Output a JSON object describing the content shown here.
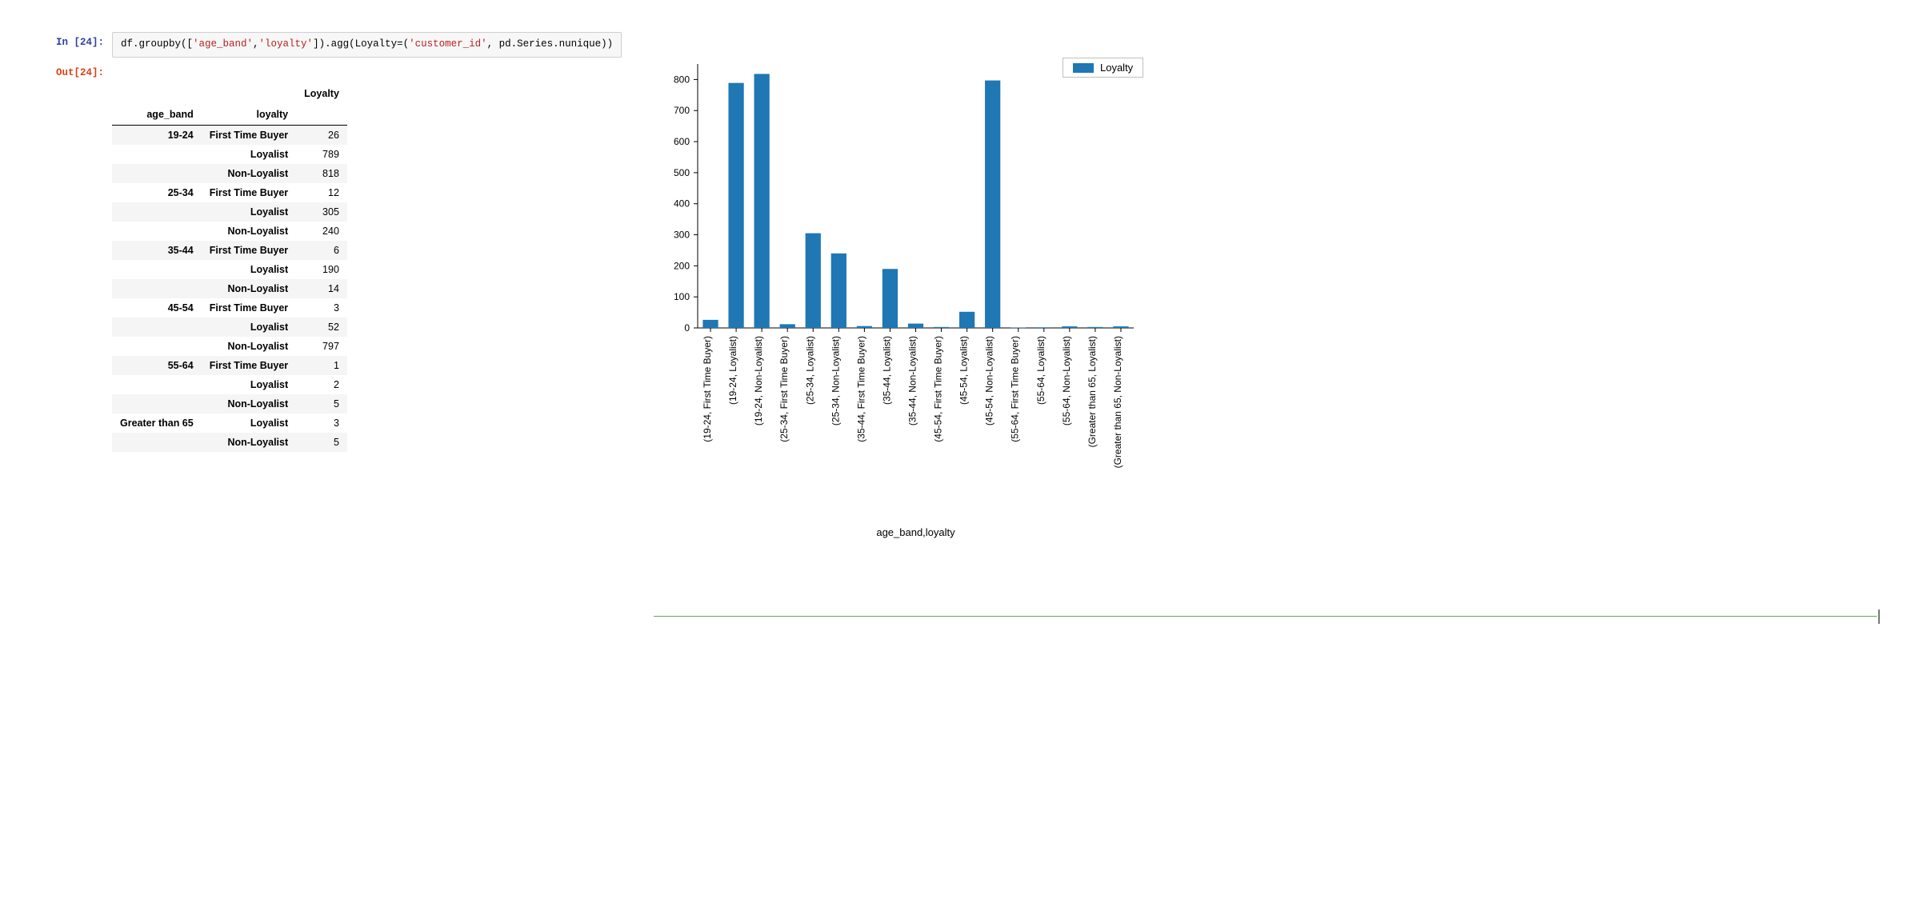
{
  "cell": {
    "in_prompt": "In [24]:",
    "out_prompt": "Out[24]:",
    "code_parts": {
      "p1": "df.groupby([",
      "s1": "'age_band'",
      "p2": ",",
      "s2": "'loyalty'",
      "p3": "]).agg(Loyalty",
      "op": "=",
      "p4": "(",
      "s3": "'customer_id'",
      "p5": ", pd.Series.nunique))"
    }
  },
  "table": {
    "col_header": "Loyalty",
    "idx0_header": "age_band",
    "idx1_header": "loyalty",
    "rows": [
      {
        "age": "19-24",
        "loy": "First Time Buyer",
        "val": "26"
      },
      {
        "age": "",
        "loy": "Loyalist",
        "val": "789"
      },
      {
        "age": "",
        "loy": "Non-Loyalist",
        "val": "818"
      },
      {
        "age": "25-34",
        "loy": "First Time Buyer",
        "val": "12"
      },
      {
        "age": "",
        "loy": "Loyalist",
        "val": "305"
      },
      {
        "age": "",
        "loy": "Non-Loyalist",
        "val": "240"
      },
      {
        "age": "35-44",
        "loy": "First Time Buyer",
        "val": "6"
      },
      {
        "age": "",
        "loy": "Loyalist",
        "val": "190"
      },
      {
        "age": "",
        "loy": "Non-Loyalist",
        "val": "14"
      },
      {
        "age": "45-54",
        "loy": "First Time Buyer",
        "val": "3"
      },
      {
        "age": "",
        "loy": "Loyalist",
        "val": "52"
      },
      {
        "age": "",
        "loy": "Non-Loyalist",
        "val": "797"
      },
      {
        "age": "55-64",
        "loy": "First Time Buyer",
        "val": "1"
      },
      {
        "age": "",
        "loy": "Loyalist",
        "val": "2"
      },
      {
        "age": "",
        "loy": "Non-Loyalist",
        "val": "5"
      },
      {
        "age": "Greater than 65",
        "loy": "Loyalist",
        "val": "3"
      },
      {
        "age": "",
        "loy": "Non-Loyalist",
        "val": "5"
      }
    ]
  },
  "chart": {
    "type": "bar",
    "legend_label": "Loyalty",
    "xlabel": "age_band,loyalty",
    "ylim": [
      0,
      800
    ],
    "ytick_step": 100,
    "yticks": [
      0,
      100,
      200,
      300,
      400,
      500,
      600,
      700,
      800
    ],
    "bar_color": "#1f77b4",
    "background_color": "#ffffff",
    "axis_color": "#000000",
    "font_size": 12,
    "bar_width": 0.6,
    "bars": [
      {
        "label": "(19-24, First Time Buyer)",
        "value": 26
      },
      {
        "label": "(19-24, Loyalist)",
        "value": 789
      },
      {
        "label": "(19-24, Non-Loyalist)",
        "value": 818
      },
      {
        "label": "(25-34, First Time Buyer)",
        "value": 12
      },
      {
        "label": "(25-34, Loyalist)",
        "value": 305
      },
      {
        "label": "(25-34, Non-Loyalist)",
        "value": 240
      },
      {
        "label": "(35-44, First Time Buyer)",
        "value": 6
      },
      {
        "label": "(35-44, Loyalist)",
        "value": 190
      },
      {
        "label": "(35-44, Non-Loyalist)",
        "value": 14
      },
      {
        "label": "(45-54, First Time Buyer)",
        "value": 3
      },
      {
        "label": "(45-54, Loyalist)",
        "value": 52
      },
      {
        "label": "(45-54, Non-Loyalist)",
        "value": 797
      },
      {
        "label": "(55-64, First Time Buyer)",
        "value": 1
      },
      {
        "label": "(55-64, Loyalist)",
        "value": 2
      },
      {
        "label": "(55-64, Non-Loyalist)",
        "value": 5
      },
      {
        "label": "(Greater than 65, Loyalist)",
        "value": 3
      },
      {
        "label": "(Greater than 65, Non-Loyalist)",
        "value": 5
      }
    ]
  }
}
